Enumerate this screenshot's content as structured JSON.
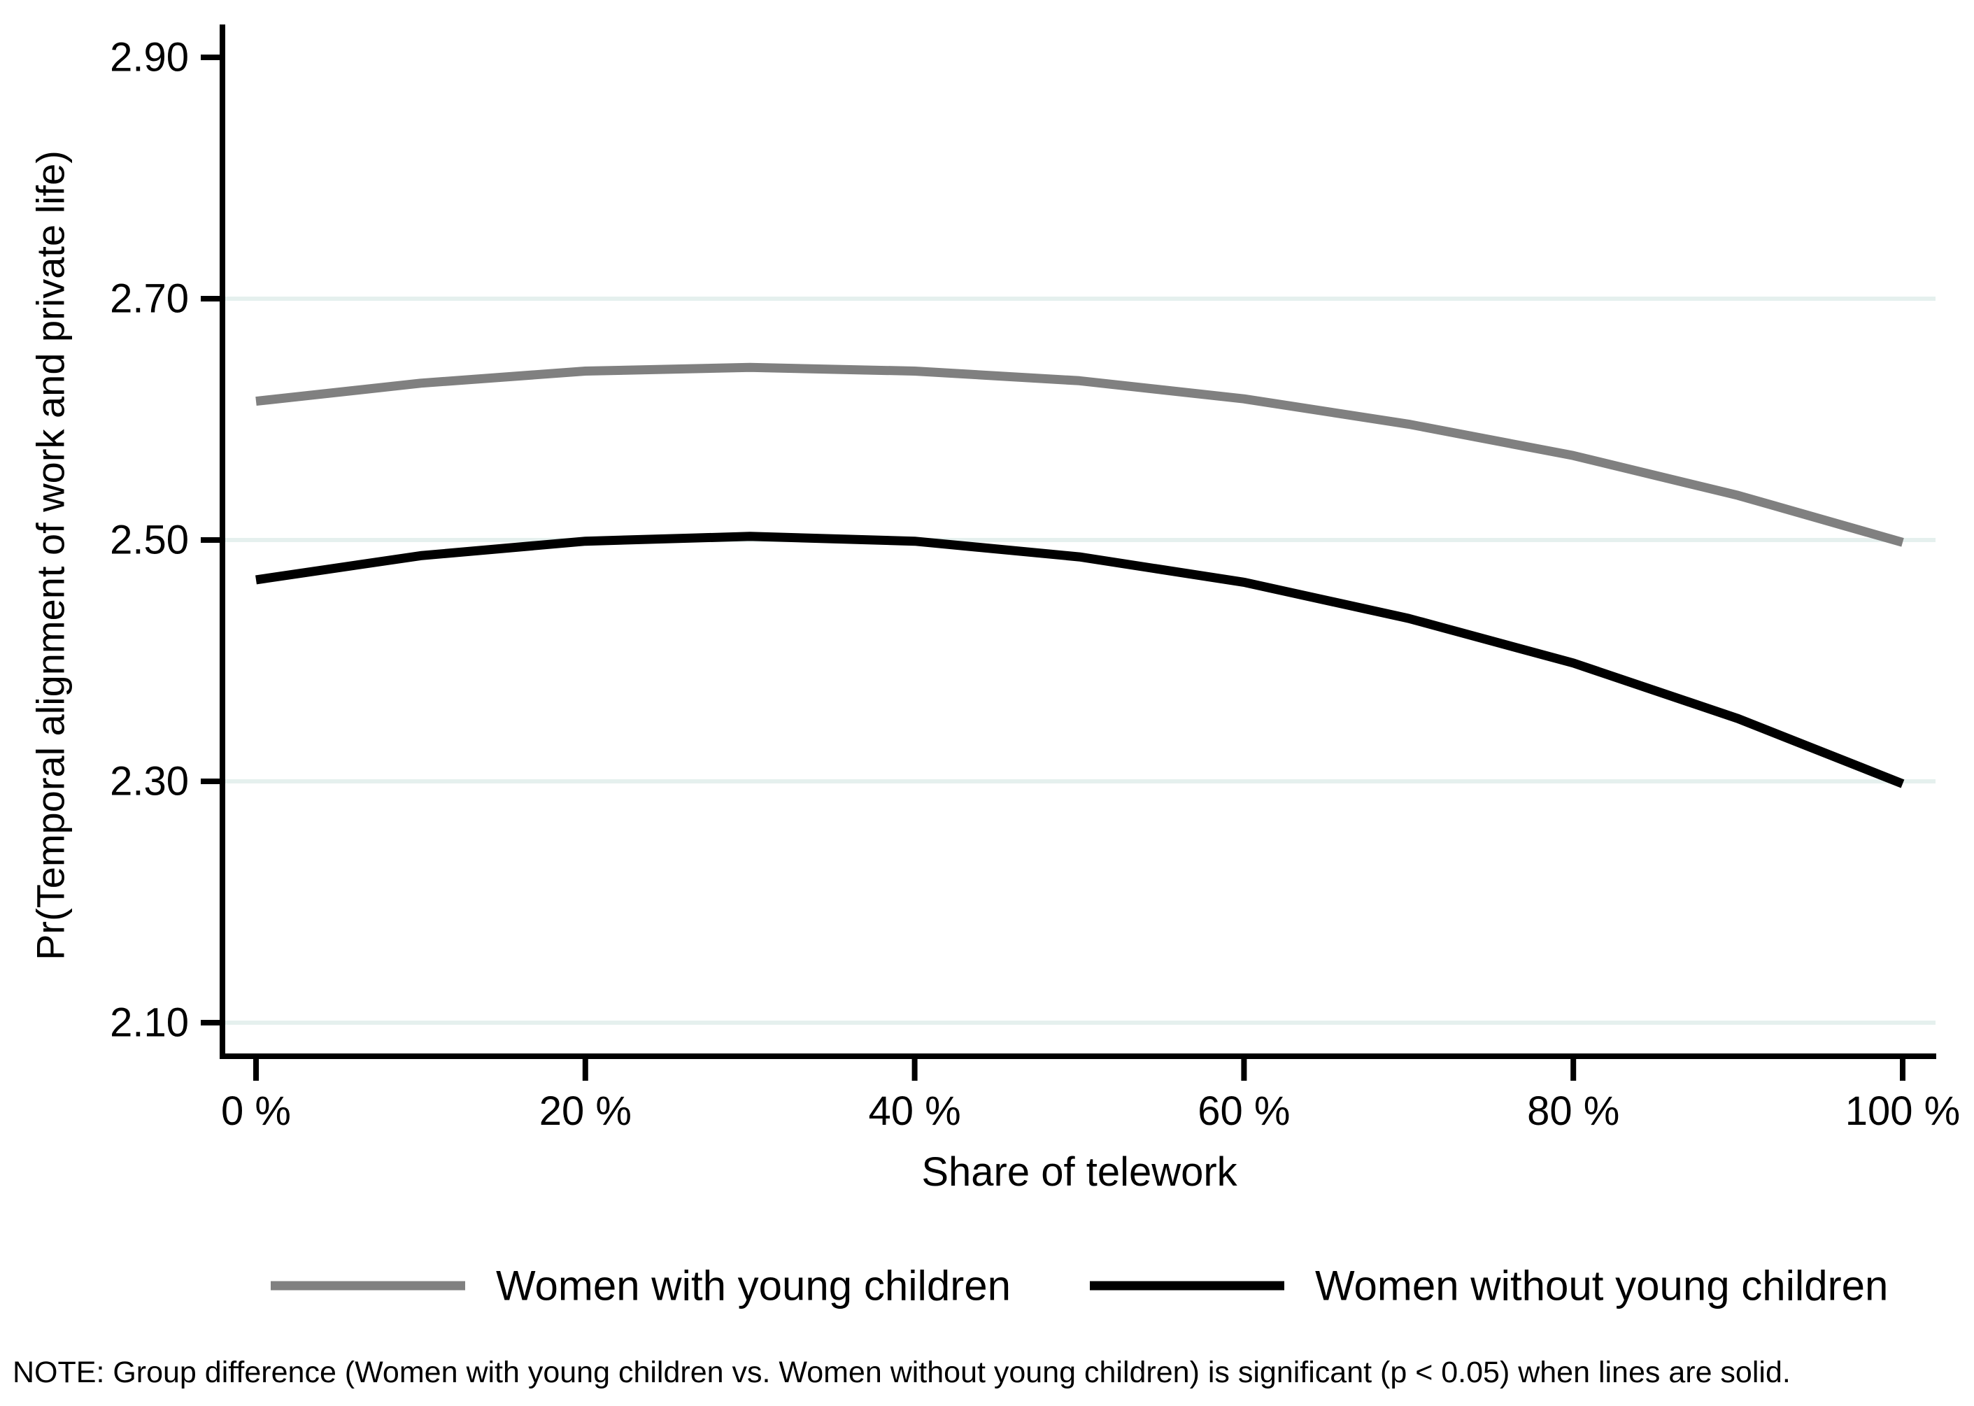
{
  "chart_data": {
    "type": "line",
    "title": "",
    "xlabel": "Share of telework",
    "ylabel": "Pr(Temporal alignment of work and private life)",
    "x": [
      0,
      10,
      20,
      30,
      40,
      50,
      60,
      70,
      80,
      90,
      100
    ],
    "xlim": [
      -2,
      102
    ],
    "ylim": [
      2.07,
      2.93
    ],
    "x_ticks": [
      0,
      20,
      40,
      60,
      80,
      100
    ],
    "x_tick_labels": [
      "0 %",
      "20 %",
      "40 %",
      "60 %",
      "80 %",
      "100 %"
    ],
    "y_ticks": [
      2.1,
      2.3,
      2.5,
      2.7,
      2.9
    ],
    "y_tick_labels": [
      "2.10",
      "2.30",
      "2.50",
      "2.70",
      "2.90"
    ],
    "grid": "horizontal",
    "gridline_values": [
      2.1,
      2.3,
      2.5,
      2.7
    ],
    "gridline_color": "#e5f0ee",
    "axis_color": "#000000",
    "legend_position": "bottom",
    "series": [
      {
        "name": "Women with young children",
        "color": "#808080",
        "style": "solid",
        "values": [
          2.615,
          2.63,
          2.64,
          2.643,
          2.64,
          2.632,
          2.617,
          2.596,
          2.57,
          2.537,
          2.498
        ]
      },
      {
        "name": "Women without young children",
        "color": "#000000",
        "style": "solid",
        "values": [
          2.467,
          2.487,
          2.499,
          2.503,
          2.499,
          2.486,
          2.465,
          2.435,
          2.398,
          2.352,
          2.298
        ]
      }
    ]
  },
  "note": "NOTE: Group difference (Women with young children vs. Women without young children) is significant (p < 0.05) when lines are solid."
}
